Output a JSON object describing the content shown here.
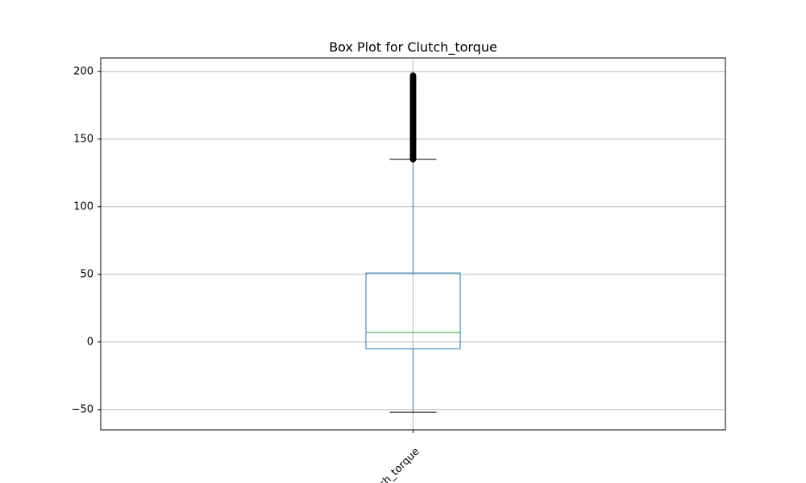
{
  "chart_data": {
    "type": "box",
    "title": "Box Plot for Clutch_torque",
    "xlabel": "",
    "ylabel": "",
    "categories": [
      "Clutch_torque"
    ],
    "visible_category_label": "tch_torque",
    "ylim": [
      -65,
      210
    ],
    "yticks": [
      -50,
      0,
      50,
      100,
      150,
      200
    ],
    "ytick_labels": [
      "−50",
      "0",
      "50",
      "100",
      "150",
      "200"
    ],
    "grid": true,
    "box": {
      "whisker_low": -52,
      "q1": -5,
      "median": 7,
      "q3": 51,
      "whisker_high": 135,
      "outlier_min": 135,
      "outlier_max": 197
    },
    "colors": {
      "box": "#1f77b4",
      "median": "#2ca02c",
      "whisker_cap": "#000000",
      "outlier": "#000000",
      "grid": "#b0b0b0"
    }
  }
}
